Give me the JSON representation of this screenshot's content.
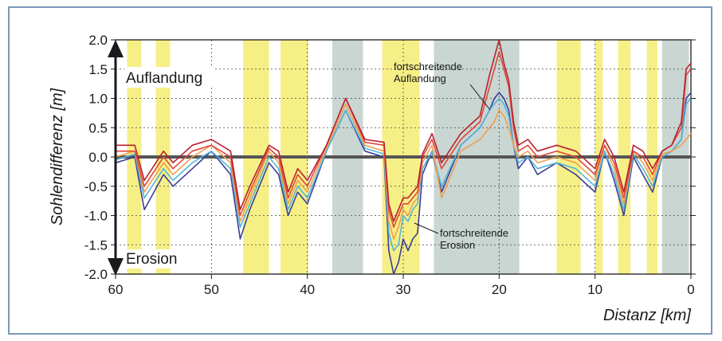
{
  "chart_data": {
    "type": "line",
    "xlabel": "Distanz [km]",
    "ylabel": "Sohlendifferenz [m]",
    "xlim": [
      60,
      0
    ],
    "ylim": [
      -2.0,
      2.0
    ],
    "x_ticks": [
      "60",
      "50",
      "40",
      "30",
      "20",
      "10",
      "0"
    ],
    "y_ticks": [
      "2.0",
      "1.5",
      "1.0",
      "0.5",
      "0.0",
      "-0.5",
      "-1.0",
      "-1.5",
      "-2.0"
    ],
    "grid": true,
    "colors": {
      "yellow_band": "#f6ef86",
      "gray_band": "#c9d6d2",
      "series_dark_red": "#b8222e",
      "series_red": "#e0483a",
      "series_orange": "#f0a050",
      "series_blue": "#3a3f9a",
      "series_light_blue": "#52b6d8",
      "zero_line": "#555555"
    },
    "bands": [
      {
        "kind": "yellow",
        "x": [
          58.8,
          57.3
        ]
      },
      {
        "kind": "yellow",
        "x": [
          55.8,
          54.3
        ]
      },
      {
        "kind": "yellow",
        "x": [
          46.7,
          44.0
        ]
      },
      {
        "kind": "yellow",
        "x": [
          42.8,
          39.9
        ]
      },
      {
        "kind": "gray",
        "x": [
          37.4,
          34.2
        ]
      },
      {
        "kind": "yellow",
        "x": [
          32.2,
          28.3
        ]
      },
      {
        "kind": "gray",
        "x": [
          26.8,
          17.9
        ]
      },
      {
        "kind": "yellow",
        "x": [
          14.0,
          11.5
        ]
      },
      {
        "kind": "yellow",
        "x": [
          10.0,
          9.2
        ]
      },
      {
        "kind": "yellow",
        "x": [
          7.6,
          6.3
        ]
      },
      {
        "kind": "yellow",
        "x": [
          4.6,
          3.5
        ]
      },
      {
        "kind": "gray",
        "x": [
          3.0,
          0.2
        ]
      }
    ],
    "series": [
      {
        "color": "#3a3f9a",
        "x": [
          60,
          58,
          57,
          55,
          54,
          52,
          50,
          48,
          47,
          46,
          44,
          43,
          42,
          41,
          40,
          38,
          36,
          34,
          32,
          31.5,
          31,
          30.5,
          30,
          29.5,
          29,
          28.5,
          28,
          27,
          26,
          24,
          22,
          21,
          20.5,
          20,
          19.5,
          19,
          18.5,
          18,
          17,
          16,
          14,
          12,
          10,
          9,
          8,
          7,
          6,
          5,
          4,
          3,
          2,
          1,
          0.5,
          0
        ],
        "y": [
          -0.1,
          0.0,
          -0.9,
          -0.3,
          -0.5,
          -0.2,
          0.1,
          -0.3,
          -1.4,
          -0.9,
          -0.1,
          -0.3,
          -1.0,
          -0.6,
          -0.8,
          0.1,
          0.8,
          0.1,
          0.0,
          -1.6,
          -2.0,
          -1.8,
          -1.4,
          -1.6,
          -1.4,
          -1.3,
          -0.3,
          0.1,
          -0.6,
          0.2,
          0.5,
          0.8,
          1.0,
          1.1,
          1.0,
          0.8,
          0.2,
          -0.2,
          0.0,
          -0.3,
          -0.1,
          -0.3,
          -0.6,
          0.1,
          -0.4,
          -1.0,
          0.0,
          -0.3,
          -0.6,
          0.0,
          0.1,
          0.3,
          1.0,
          1.1
        ]
      },
      {
        "color": "#52b6d8",
        "x": [
          60,
          58,
          57,
          55,
          54,
          52,
          50,
          48,
          47,
          46,
          44,
          43,
          42,
          41,
          40,
          38,
          36,
          34,
          32,
          31.5,
          31,
          30.5,
          30,
          29.5,
          29,
          28.5,
          28,
          27,
          26,
          24,
          22,
          21,
          20.5,
          20,
          19.5,
          19,
          18.5,
          18,
          17,
          16,
          14,
          12,
          10,
          9,
          8,
          7,
          6,
          5,
          4,
          3,
          2,
          1,
          0.5,
          0
        ],
        "y": [
          -0.05,
          0.05,
          -0.7,
          -0.2,
          -0.4,
          -0.1,
          0.1,
          -0.2,
          -1.2,
          -0.8,
          0.0,
          -0.2,
          -0.9,
          -0.5,
          -0.7,
          0.1,
          0.8,
          0.15,
          0.05,
          -1.3,
          -1.6,
          -1.5,
          -1.0,
          -1.1,
          -0.9,
          -0.8,
          -0.2,
          0.1,
          -0.5,
          0.2,
          0.5,
          0.8,
          0.9,
          1.0,
          0.9,
          0.7,
          0.2,
          -0.1,
          0.0,
          -0.2,
          -0.1,
          -0.2,
          -0.5,
          0.1,
          -0.3,
          -0.9,
          0.05,
          -0.2,
          -0.5,
          0.0,
          0.1,
          0.3,
          0.9,
          1.0
        ]
      },
      {
        "color": "#f0a050",
        "x": [
          60,
          58,
          57,
          55,
          54,
          52,
          50,
          48,
          47,
          46,
          44,
          43,
          42,
          41,
          40,
          38,
          36,
          34,
          32,
          31.5,
          31,
          30.5,
          30,
          29.5,
          29,
          28.5,
          28,
          27,
          26,
          24,
          22,
          21,
          20.5,
          20,
          19.5,
          19,
          18.5,
          18,
          17,
          16,
          14,
          12,
          10,
          9,
          8,
          7,
          6,
          5,
          4,
          3,
          2,
          1,
          0.5,
          0
        ],
        "y": [
          0.0,
          0.1,
          -0.6,
          -0.1,
          -0.3,
          0.0,
          0.2,
          -0.1,
          -1.1,
          -0.7,
          0.1,
          -0.1,
          -0.8,
          -0.4,
          -0.6,
          0.15,
          0.9,
          0.2,
          0.1,
          -1.1,
          -1.4,
          -1.2,
          -0.9,
          -1.0,
          -0.8,
          -0.7,
          -0.1,
          0.2,
          -0.7,
          0.1,
          0.3,
          0.5,
          0.6,
          0.8,
          0.7,
          0.5,
          0.2,
          0.0,
          0.1,
          -0.1,
          0.0,
          -0.1,
          -0.4,
          0.2,
          -0.2,
          -0.8,
          0.1,
          -0.1,
          -0.4,
          0.05,
          0.1,
          0.2,
          0.3,
          0.4
        ]
      },
      {
        "color": "#e0483a",
        "x": [
          60,
          58,
          57,
          55,
          54,
          52,
          50,
          48,
          47,
          46,
          44,
          43,
          42,
          41,
          40,
          38,
          36,
          34,
          32,
          31.5,
          31,
          30.5,
          30,
          29.5,
          29,
          28.5,
          28,
          27,
          26,
          24,
          22,
          21,
          20.5,
          20,
          19.5,
          19,
          18.5,
          18,
          17,
          16,
          14,
          12,
          10,
          9,
          8,
          7,
          6,
          5,
          4,
          3,
          2,
          1,
          0.5,
          0
        ],
        "y": [
          0.1,
          0.1,
          -0.5,
          0.0,
          -0.2,
          0.1,
          0.2,
          0.0,
          -1.0,
          -0.6,
          0.15,
          0.0,
          -0.7,
          -0.3,
          -0.5,
          0.2,
          1.0,
          0.25,
          0.2,
          -0.9,
          -1.2,
          -1.0,
          -0.8,
          -0.8,
          -0.7,
          -0.6,
          0.0,
          0.3,
          -0.2,
          0.3,
          0.6,
          1.2,
          1.5,
          1.8,
          1.5,
          1.2,
          0.5,
          0.1,
          0.2,
          0.0,
          0.1,
          0.0,
          -0.3,
          0.2,
          -0.1,
          -0.7,
          0.1,
          0.0,
          -0.3,
          0.1,
          0.2,
          0.5,
          1.4,
          1.5
        ]
      },
      {
        "color": "#b8222e",
        "x": [
          60,
          58,
          57,
          55,
          54,
          52,
          50,
          48,
          47,
          46,
          44,
          43,
          42,
          41,
          40,
          38,
          36,
          34,
          32,
          31.5,
          31,
          30.5,
          30,
          29.5,
          29,
          28.5,
          28,
          27,
          26,
          24,
          22,
          21,
          20.5,
          20,
          19.5,
          19,
          18.5,
          18,
          17,
          16,
          14,
          12,
          10,
          9,
          8,
          7,
          6,
          5,
          4,
          3,
          2,
          1,
          0.5,
          0
        ],
        "y": [
          0.2,
          0.2,
          -0.4,
          0.1,
          -0.1,
          0.2,
          0.3,
          0.1,
          -0.9,
          -0.5,
          0.2,
          0.1,
          -0.6,
          -0.2,
          -0.4,
          0.2,
          1.0,
          0.3,
          0.25,
          -0.8,
          -1.1,
          -0.9,
          -0.7,
          -0.7,
          -0.6,
          -0.5,
          0.05,
          0.4,
          -0.1,
          0.4,
          0.7,
          1.4,
          1.7,
          2.0,
          1.6,
          1.3,
          0.6,
          0.2,
          0.3,
          0.1,
          0.2,
          0.1,
          -0.2,
          0.3,
          0.0,
          -0.6,
          0.2,
          0.1,
          -0.2,
          0.1,
          0.2,
          0.6,
          1.5,
          1.6
        ]
      }
    ],
    "annotations": {
      "auflandung": "Auflandung",
      "erosion": "Erosion",
      "fortschreitende_auflandung_1": "fortschreitende",
      "fortschreitende_auflandung_2": "Auflandung",
      "fortschreitende_erosion_1": "fortschreitende",
      "fortschreitende_erosion_2": "Erosion"
    }
  }
}
